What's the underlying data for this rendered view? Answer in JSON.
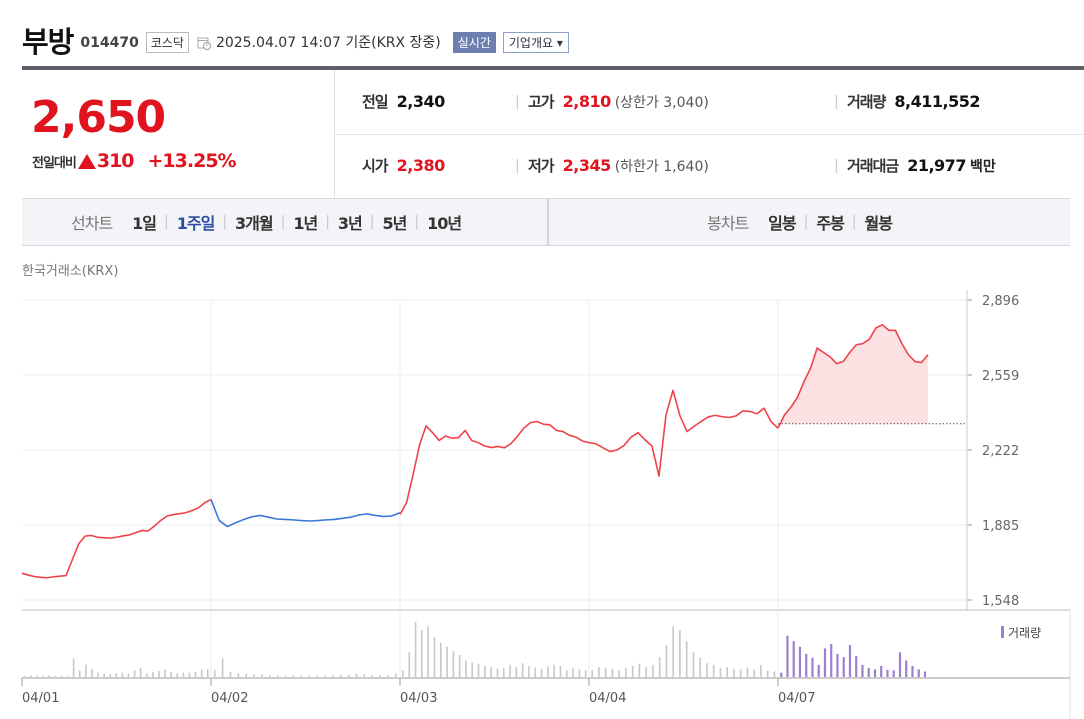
{
  "header": {
    "name": "부방",
    "code": "014470",
    "market": "코스닥",
    "date": "2025.04.07 14:07  기준(KRX 장중)",
    "realtime_label": "실시간",
    "company_label": "기업개요 ▾"
  },
  "price": {
    "current": "2,650",
    "change_label": "전일대비",
    "change_amount": "310",
    "change_pct": "+13.25%"
  },
  "stats": {
    "prev_label": "전일",
    "prev": "2,340",
    "high_label": "고가",
    "high": "2,810",
    "upper_limit": "(상한가 3,040)",
    "volume_label": "거래량",
    "volume": "8,411,552",
    "open_label": "시가",
    "open": "2,380",
    "low_label": "저가",
    "low": "2,345",
    "lower_limit": "(하한가 1,640)",
    "amount_label": "거래대금",
    "amount": "21,977",
    "amount_unit": "백만",
    "separator": "|"
  },
  "tabs": {
    "line_label": "선차트",
    "line_items": [
      "1일",
      "1주일",
      "3개월",
      "1년",
      "3년",
      "5년",
      "10년"
    ],
    "line_active": 1,
    "candle_label": "봉차트",
    "candle_items": [
      "일봉",
      "주봉",
      "월봉"
    ],
    "divider": "|"
  },
  "source_label": "한국거래소(KRX)",
  "colors": {
    "up": "#f0424a",
    "down": "#3b78d8",
    "volume": "#c7c7c7",
    "volume_today": "#9b7fd0",
    "today_fill": "#fde0e2"
  },
  "chart_data": {
    "type": "line",
    "x_labels": [
      "04/01",
      "04/02",
      "04/03",
      "04/04",
      "04/07"
    ],
    "y_ticks": [
      "2,896",
      "2,559",
      "2,222",
      "1,885",
      "1,548"
    ],
    "ylim": [
      1548,
      2896
    ],
    "previous_close": 2340,
    "volume_legend": "거래량",
    "series": [
      {
        "day": "04/01",
        "values": [
          1668,
          1660,
          1653,
          1650,
          1648,
          1652,
          1655,
          1658,
          1730,
          1800,
          1835,
          1838,
          1830,
          1828,
          1826,
          1830,
          1836,
          1840,
          1850,
          1860,
          1858,
          1880,
          1905,
          1925,
          1932,
          1936,
          1940,
          1950,
          1962,
          1985,
          2000
        ]
      },
      {
        "day": "04/02",
        "values": [
          2000,
          1905,
          1878,
          1895,
          1910,
          1922,
          1928,
          1920,
          1912,
          1910,
          1908,
          1905,
          1903,
          1905,
          1908,
          1910,
          1915,
          1920,
          1930,
          1935,
          1928,
          1923,
          1926,
          1940
        ]
      },
      {
        "day": "04/03",
        "values": [
          1932,
          1985,
          2110,
          2245,
          2330,
          2300,
          2265,
          2285,
          2275,
          2278,
          2310,
          2265,
          2255,
          2240,
          2233,
          2238,
          2232,
          2250,
          2283,
          2320,
          2345,
          2350,
          2338,
          2335,
          2310,
          2305,
          2288,
          2280,
          2262,
          2255
        ]
      },
      {
        "day": "04/04",
        "values": [
          2255,
          2250,
          2232,
          2215,
          2222,
          2242,
          2280,
          2300,
          2268,
          2240,
          2105,
          2380,
          2490,
          2375,
          2305,
          2328,
          2350,
          2370,
          2378,
          2372,
          2368,
          2375,
          2398,
          2395,
          2385,
          2410,
          2350,
          2320
        ]
      },
      {
        "day": "04/07",
        "values": [
          2320,
          2380,
          2415,
          2460,
          2530,
          2590,
          2680,
          2660,
          2640,
          2610,
          2620,
          2660,
          2695,
          2700,
          2720,
          2770,
          2785,
          2760,
          2760,
          2700,
          2650,
          2620,
          2615,
          2650
        ]
      }
    ],
    "volume": [
      {
        "day": "04/01",
        "values": [
          0.02,
          0.03,
          0.02,
          0.02,
          0.03,
          0.02,
          0.02,
          0.02,
          0.34,
          0.12,
          0.22,
          0.15,
          0.08,
          0.06,
          0.05,
          0.07,
          0.08,
          0.06,
          0.12,
          0.16,
          0.06,
          0.09,
          0.11,
          0.14,
          0.09,
          0.07,
          0.08,
          0.08,
          0.09,
          0.13,
          0.14
        ]
      },
      {
        "day": "04/02",
        "values": [
          0.13,
          0.34,
          0.09,
          0.07,
          0.06,
          0.05,
          0.05,
          0.03,
          0.03,
          0.02,
          0.03,
          0.02,
          0.02,
          0.02,
          0.02,
          0.03,
          0.04,
          0.04,
          0.06,
          0.05,
          0.03,
          0.03,
          0.03,
          0.06
        ]
      },
      {
        "day": "04/03",
        "values": [
          0.12,
          0.45,
          1.0,
          0.85,
          0.92,
          0.72,
          0.62,
          0.55,
          0.47,
          0.4,
          0.3,
          0.26,
          0.24,
          0.2,
          0.18,
          0.15,
          0.16,
          0.22,
          0.18,
          0.25,
          0.2,
          0.17,
          0.15,
          0.19,
          0.22,
          0.2,
          0.12,
          0.16,
          0.14,
          0.12
        ]
      },
      {
        "day": "04/04",
        "values": [
          0.13,
          0.18,
          0.17,
          0.15,
          0.12,
          0.16,
          0.2,
          0.24,
          0.18,
          0.22,
          0.36,
          0.58,
          0.92,
          0.85,
          0.65,
          0.45,
          0.35,
          0.25,
          0.22,
          0.16,
          0.18,
          0.15,
          0.14,
          0.17,
          0.13,
          0.22,
          0.12,
          0.1
        ]
      },
      {
        "day": "04/07",
        "values": [
          0.08,
          0.75,
          0.65,
          0.55,
          0.42,
          0.35,
          0.22,
          0.52,
          0.6,
          0.42,
          0.36,
          0.58,
          0.38,
          0.22,
          0.16,
          0.14,
          0.2,
          0.13,
          0.12,
          0.45,
          0.3,
          0.2,
          0.14,
          0.1
        ]
      }
    ]
  }
}
